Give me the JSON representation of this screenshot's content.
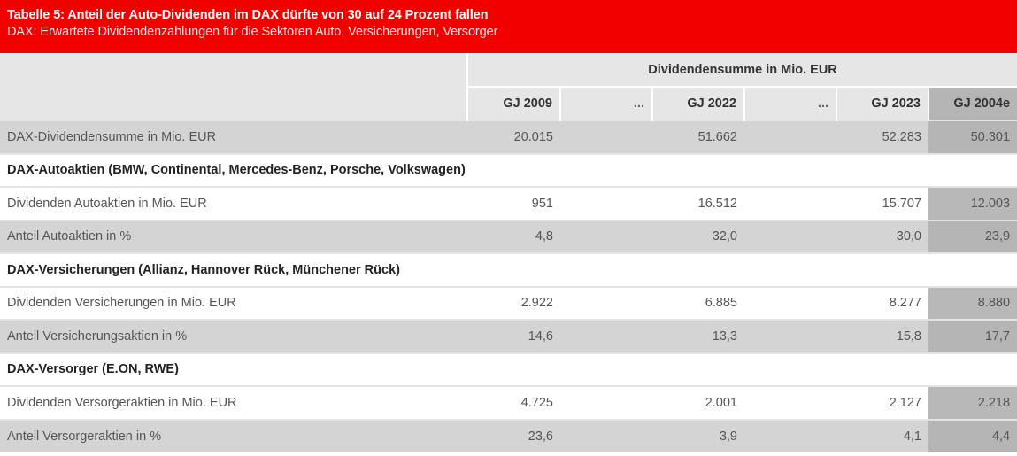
{
  "header": {
    "title": "Tabelle 5: Anteil der Auto-Dividenden im DAX dürfte von 30 auf 24 Prozent fallen",
    "subtitle": "DAX: Erwartete Dividendenzahlungen für die Sektoren Auto, Versicherungen, Versorger",
    "accent_color": "#f20000"
  },
  "table": {
    "group_header": "Dividendensumme in Mio. EUR",
    "columns": [
      "GJ 2009",
      "...",
      "GJ 2022",
      "...",
      "GJ 2023",
      "GJ 2004e"
    ],
    "rows": [
      {
        "type": "data",
        "shade": true,
        "label": "DAX-Dividendensumme in Mio. EUR",
        "values": [
          "20.015",
          "",
          "51.662",
          "",
          "52.283",
          "50.301"
        ]
      },
      {
        "type": "section",
        "label": "DAX-Autoaktien (BMW, Continental, Mercedes-Benz, Porsche, Volkswagen)"
      },
      {
        "type": "data",
        "shade": false,
        "label": "Dividenden Autoaktien in Mio. EUR",
        "values": [
          "951",
          "",
          "16.512",
          "",
          "15.707",
          "12.003"
        ]
      },
      {
        "type": "data",
        "shade": true,
        "label": "Anteil Autoaktien in %",
        "values": [
          "4,8",
          "",
          "32,0",
          "",
          "30,0",
          "23,9"
        ]
      },
      {
        "type": "section",
        "label": "DAX-Versicherungen (Allianz, Hannover Rück, Münchener Rück)"
      },
      {
        "type": "data",
        "shade": false,
        "label": "Dividenden Versicherungen in Mio. EUR",
        "values": [
          "2.922",
          "",
          "6.885",
          "",
          "8.277",
          "8.880"
        ]
      },
      {
        "type": "data",
        "shade": true,
        "label": "Anteil Versicherungsaktien in %",
        "values": [
          "14,6",
          "",
          "13,3",
          "",
          "15,8",
          "17,7"
        ]
      },
      {
        "type": "section",
        "label": "DAX-Versorger (E.ON, RWE)"
      },
      {
        "type": "data",
        "shade": false,
        "label": "Dividenden Versorgeraktien in Mio. EUR",
        "values": [
          "4.725",
          "",
          "2.001",
          "",
          "2.127",
          "2.218"
        ]
      },
      {
        "type": "data",
        "shade": true,
        "label": "Anteil Versorgeraktien in %",
        "values": [
          "23,6",
          "",
          "3,9",
          "",
          "4,1",
          "4,4"
        ]
      }
    ]
  }
}
